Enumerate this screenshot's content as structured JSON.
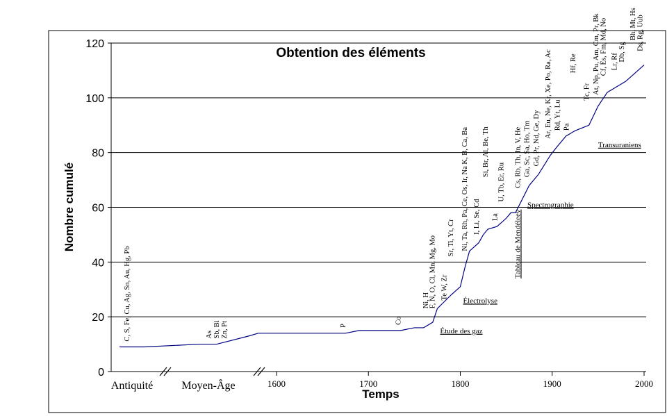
{
  "chart_data": {
    "type": "line",
    "title": "Obtention des éléments",
    "xlabel": "Temps",
    "ylabel": "Nombre cumulé",
    "ylim": [
      0,
      120
    ],
    "yticks": [
      0,
      20,
      40,
      60,
      80,
      100,
      120
    ],
    "xlim": [
      1580,
      2000
    ],
    "xticks": [
      1600,
      1700,
      1800,
      1900,
      2000
    ],
    "grid": true,
    "eras": [
      {
        "label": "Antiquité",
        "x": 9,
        "y": 9
      },
      {
        "label": "Moyen-Âge",
        "x": 9,
        "y": 10
      }
    ],
    "series": [
      {
        "color": "#000080",
        "points": [
          {
            "era": "Antiquité",
            "y": 9
          },
          {
            "era": "Moyen-Âge",
            "y": 10
          },
          {
            "x": 1570,
            "y": 13
          },
          {
            "x": 1580,
            "y": 14
          },
          {
            "x": 1675,
            "y": 14
          },
          {
            "x": 1690,
            "y": 15
          },
          {
            "x": 1735,
            "y": 15
          },
          {
            "x": 1750,
            "y": 16
          },
          {
            "x": 1760,
            "y": 16
          },
          {
            "x": 1770,
            "y": 18
          },
          {
            "x": 1775,
            "y": 23
          },
          {
            "x": 1790,
            "y": 28
          },
          {
            "x": 1800,
            "y": 31
          },
          {
            "x": 1805,
            "y": 38
          },
          {
            "x": 1810,
            "y": 44
          },
          {
            "x": 1820,
            "y": 47
          },
          {
            "x": 1825,
            "y": 50
          },
          {
            "x": 1830,
            "y": 52
          },
          {
            "x": 1840,
            "y": 53
          },
          {
            "x": 1850,
            "y": 56
          },
          {
            "x": 1855,
            "y": 58
          },
          {
            "x": 1860,
            "y": 58
          },
          {
            "x": 1875,
            "y": 68
          },
          {
            "x": 1885,
            "y": 72
          },
          {
            "x": 1898,
            "y": 79
          },
          {
            "x": 1905,
            "y": 82
          },
          {
            "x": 1915,
            "y": 86
          },
          {
            "x": 1925,
            "y": 88
          },
          {
            "x": 1940,
            "y": 90
          },
          {
            "x": 1950,
            "y": 97
          },
          {
            "x": 1960,
            "y": 102
          },
          {
            "x": 1980,
            "y": 106
          },
          {
            "x": 2000,
            "y": 112
          }
        ]
      }
    ],
    "element_labels": [
      {
        "text": "C, S, Fe, Cu, Ag, Sn, Au, Hg, Pb",
        "era": "Antiquité",
        "y": 10
      },
      {
        "text": "As",
        "era": "Moyen-Âge",
        "y": 11
      },
      {
        "text": "Sb, Bi",
        "era": "Moyen-Âge",
        "y": 11
      },
      {
        "text": "Zn, Pt",
        "era": "Moyen-Âge",
        "y": 11
      },
      {
        "text": "P",
        "x": 1675,
        "y": 15
      },
      {
        "text": "Co",
        "x": 1735,
        "y": 16
      },
      {
        "text": "Ni, H",
        "x": 1765,
        "y": 22
      },
      {
        "text": "F, N, O, Cl, Mn, Mg, Mo",
        "x": 1772,
        "y": 22
      },
      {
        "text": "Te W, Zr",
        "x": 1785,
        "y": 25
      },
      {
        "text": "Sr, Ti, Yt, Cr",
        "x": 1792,
        "y": 41
      },
      {
        "text": "Ni, Ta, Rh, Pa, Ce, Os, Ir, Na K, B, Ca, Ba",
        "x": 1807,
        "y": 43
      },
      {
        "text": "I, Li, Se, Cd",
        "x": 1820,
        "y": 49
      },
      {
        "text": "Si, Br, Al, Be, Th",
        "x": 1830,
        "y": 70
      },
      {
        "text": "La",
        "x": 1840,
        "y": 54
      },
      {
        "text": "U, Tb, Er, Ru",
        "x": 1847,
        "y": 61
      },
      {
        "text": "Cs, Rb, Th, In, V, He",
        "x": 1865,
        "y": 66
      },
      {
        "text": "Ga, Sc, Sa, Ho, Tm",
        "x": 1875,
        "y": 70
      },
      {
        "text": "Gd, Pr, Nd, Ge, Dy",
        "x": 1885,
        "y": 74
      },
      {
        "text": "Ar, Eu, Ne, Kr, Xe, Po, Ra, Ac",
        "x": 1898,
        "y": 84
      },
      {
        "text": "Rd, Yt, Lu",
        "x": 1908,
        "y": 87
      },
      {
        "text": "Pa",
        "x": 1918,
        "y": 87
      },
      {
        "text": "Hf, Re",
        "x": 1925,
        "y": 108
      },
      {
        "text": "Tc, Fr",
        "x": 1940,
        "y": 98
      },
      {
        "text": "At, Np, Pu, Am, Cm, Pr, Bk",
        "x": 1950,
        "y": 100
      },
      {
        "text": "Cf, Es, Fm, Md, No",
        "x": 1958,
        "y": 107
      },
      {
        "text": "Lr, Rf",
        "x": 1970,
        "y": 109
      },
      {
        "text": "Db, Sg",
        "x": 1978,
        "y": 112
      },
      {
        "text": "Bh, Mt, Hs",
        "x": 1990,
        "y": 120
      },
      {
        "text": "Ds, Rg, Uub",
        "x": 1998,
        "y": 116
      }
    ],
    "annotations": [
      {
        "text": "Étude des gaz",
        "x": 1778,
        "y": 14,
        "underline": true
      },
      {
        "text": "Électrolyse",
        "x": 1803,
        "y": 25,
        "underline": true
      },
      {
        "text": "Tableau de Mendéleev",
        "x": 1865,
        "y": 34,
        "vertical": true,
        "underline": true
      },
      {
        "text": "Spectrographie",
        "x": 1873,
        "y": 60,
        "underline": true
      },
      {
        "text": "Transuraniens",
        "x": 1950,
        "y": 82,
        "underline": true
      }
    ]
  }
}
